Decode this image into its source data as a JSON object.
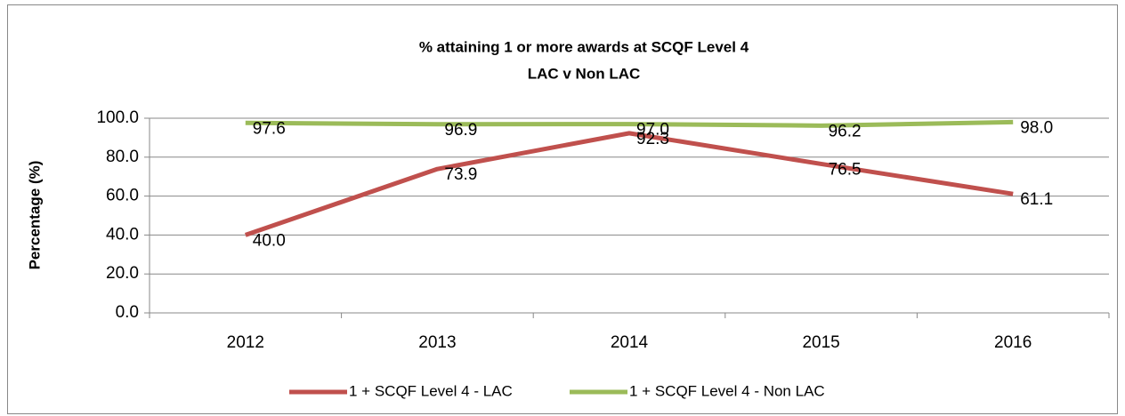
{
  "chart_data": {
    "type": "line",
    "title": "% attaining 1 or more awards at SCQF Level 4",
    "subtitle": "LAC v Non LAC",
    "y_label": "Percentage (%)",
    "categories": [
      "2012",
      "2013",
      "2014",
      "2015",
      "2016"
    ],
    "series": [
      {
        "name": "1 + SCQF Level 4 - LAC",
        "color": "#c0504d",
        "values": [
          40.0,
          73.9,
          92.3,
          76.5,
          61.1
        ],
        "value_labels": [
          "40.0",
          "73.9",
          "92.3",
          "76.5",
          "61.1"
        ]
      },
      {
        "name": "1 + SCQF Level 4 - Non LAC",
        "color": "#9bbb59",
        "values": [
          97.6,
          96.9,
          97.0,
          96.2,
          98.0
        ],
        "value_labels": [
          "97.6",
          "96.9",
          "97.0",
          "96.2",
          "98.0"
        ]
      }
    ],
    "ylim": [
      0,
      100
    ],
    "yticks": [
      {
        "value": 0,
        "label": "0.0"
      },
      {
        "value": 20,
        "label": "20.0"
      },
      {
        "value": 40,
        "label": "40.0"
      },
      {
        "value": 60,
        "label": "60.0"
      },
      {
        "value": 80,
        "label": "80.0"
      },
      {
        "value": 100,
        "label": "100.0"
      }
    ],
    "grid": true,
    "legend": "bottom"
  }
}
